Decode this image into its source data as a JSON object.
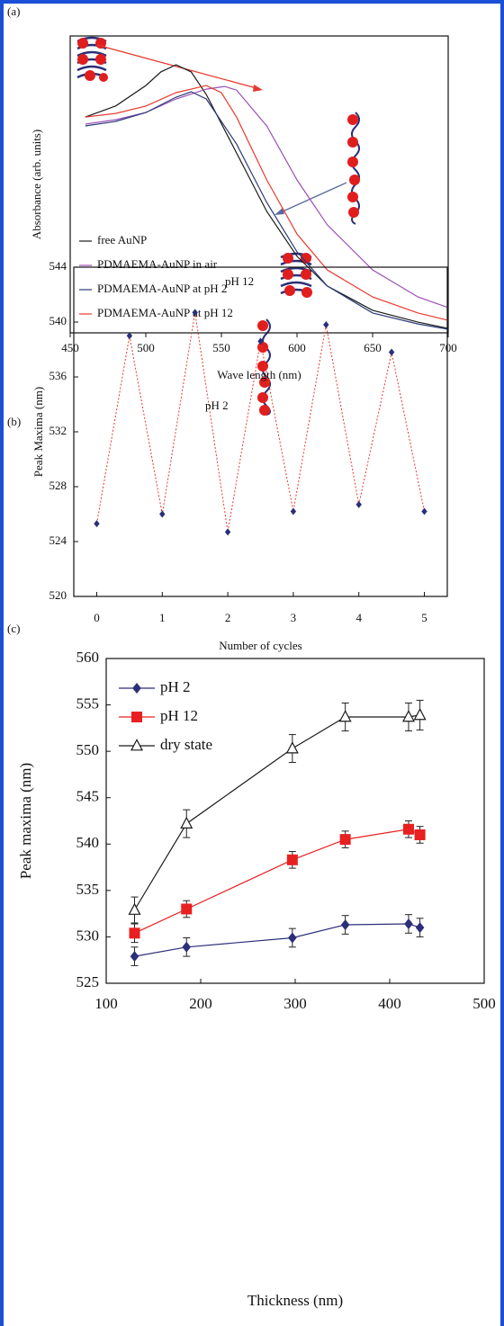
{
  "chart_data": [
    {
      "type": "line",
      "label": "(a)",
      "xlabel": "Wave length (nm)",
      "ylabel": "Absorbance (arb. units)",
      "xlim": [
        450,
        700
      ],
      "xticks": [
        450,
        500,
        550,
        600,
        650,
        700
      ],
      "ylim": [
        0,
        1
      ],
      "legend": "lower left",
      "series": [
        {
          "name": "free AuNP",
          "color": "#1a1a1a",
          "x": [
            460,
            480,
            500,
            510,
            520,
            530,
            540,
            560,
            580,
            600,
            620,
            650,
            680,
            700
          ],
          "values": [
            0.727,
            0.764,
            0.833,
            0.879,
            0.903,
            0.879,
            0.803,
            0.606,
            0.409,
            0.258,
            0.158,
            0.076,
            0.036,
            0.015
          ]
        },
        {
          "name": "PDMAEMA-AuNP in air",
          "color": "#9b4fb5",
          "x": [
            460,
            480,
            500,
            520,
            540,
            552,
            560,
            580,
            600,
            620,
            650,
            680,
            700
          ],
          "values": [
            0.703,
            0.718,
            0.742,
            0.788,
            0.821,
            0.83,
            0.818,
            0.697,
            0.515,
            0.364,
            0.212,
            0.121,
            0.085
          ]
        },
        {
          "name": "PDMAEMA-AuNP at pH 2",
          "color": "#2b3a78",
          "x": [
            460,
            480,
            500,
            520,
            530,
            540,
            560,
            580,
            600,
            620,
            650,
            680,
            700
          ],
          "values": [
            0.697,
            0.712,
            0.742,
            0.794,
            0.812,
            0.788,
            0.636,
            0.439,
            0.273,
            0.158,
            0.067,
            0.03,
            0.012
          ]
        },
        {
          "name": "PDMAEMA-AuNP at pH 12",
          "color": "#e8392f",
          "x": [
            460,
            480,
            500,
            520,
            540,
            550,
            560,
            580,
            600,
            620,
            650,
            680,
            700
          ],
          "values": [
            0.727,
            0.739,
            0.764,
            0.809,
            0.833,
            0.809,
            0.727,
            0.515,
            0.333,
            0.212,
            0.121,
            0.067,
            0.042
          ]
        }
      ]
    },
    {
      "type": "scatter",
      "label": "(b)",
      "xlabel": "Number of cycles",
      "ylabel": "Peak Maxima (nm)",
      "xlim": [
        -0.35,
        5.35
      ],
      "xticks": [
        0,
        1,
        2,
        3,
        4,
        5
      ],
      "ylim": [
        520,
        544
      ],
      "yticks": [
        520,
        524,
        528,
        532,
        536,
        540,
        544
      ],
      "annotations": [
        "pH 12",
        "pH 2"
      ],
      "x": [
        0,
        0.5,
        1,
        1.5,
        2,
        2.5,
        3,
        3.5,
        4,
        4.5,
        5
      ],
      "series": [
        {
          "color": "#2b2f78",
          "marker": "diamond",
          "line_color": "#e8392f",
          "line_style": "dotted",
          "values": [
            525.3,
            539.0,
            526.0,
            540.7,
            524.7,
            538.6,
            526.2,
            539.8,
            526.7,
            537.8,
            526.2
          ]
        }
      ]
    },
    {
      "type": "line",
      "label": "(c)",
      "xlabel": "Thickness (nm)",
      "ylabel": "Peak maxima (nm)",
      "xlim": [
        100,
        500
      ],
      "xticks": [
        100,
        200,
        300,
        400,
        500
      ],
      "ylim": [
        525,
        560
      ],
      "yticks": [
        525,
        530,
        535,
        540,
        545,
        550,
        555,
        560
      ],
      "legend": "upper left",
      "x": [
        130,
        185,
        297,
        353,
        420,
        432
      ],
      "series": [
        {
          "name": "pH 2",
          "color": "#2b2f78",
          "marker": "diamond",
          "values": [
            527.9,
            528.9,
            529.9,
            531.3,
            531.4,
            531.0
          ],
          "errors": [
            1.0,
            1.0,
            1.0,
            1.0,
            1.0,
            1.0
          ]
        },
        {
          "name": "pH 12",
          "color": "#e8201f",
          "marker": "square",
          "values": [
            530.4,
            533.0,
            538.3,
            540.5,
            541.6,
            541.0
          ],
          "errors": [
            1.0,
            0.9,
            0.9,
            0.9,
            0.9,
            0.9
          ]
        },
        {
          "name": "dry state",
          "color": "#1a1a1a",
          "marker": "triangle-open",
          "values": [
            532.9,
            542.2,
            550.3,
            553.7,
            553.7,
            553.9
          ],
          "errors": [
            1.4,
            1.5,
            1.5,
            1.5,
            1.5,
            1.6
          ]
        }
      ]
    }
  ]
}
